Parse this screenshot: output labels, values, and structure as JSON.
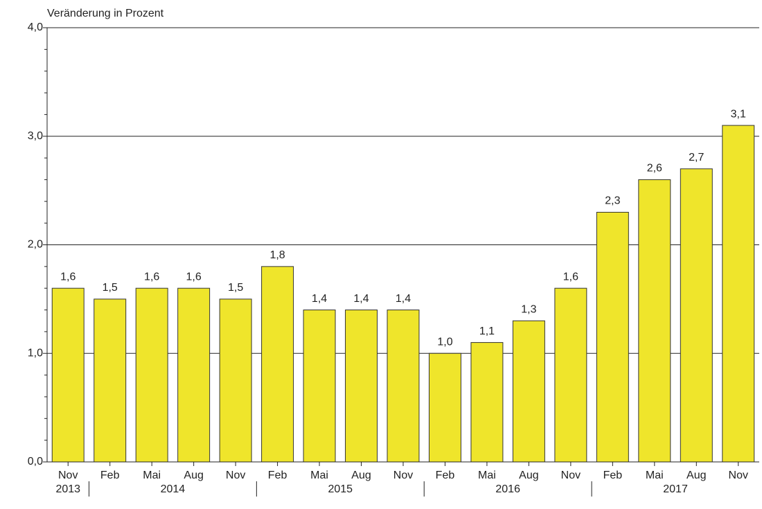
{
  "chart_data": {
    "type": "bar",
    "axis_label": "Veränderung in Prozent",
    "categories": [
      "Nov",
      "Feb",
      "Mai",
      "Aug",
      "Nov",
      "Feb",
      "Mai",
      "Aug",
      "Nov",
      "Feb",
      "Mai",
      "Aug",
      "Nov",
      "Feb",
      "Mai",
      "Aug",
      "Nov"
    ],
    "year_groups": [
      {
        "label": "2013",
        "count": 1
      },
      {
        "label": "2014",
        "count": 4
      },
      {
        "label": "2015",
        "count": 4
      },
      {
        "label": "2016",
        "count": 4
      },
      {
        "label": "2017",
        "count": 4
      }
    ],
    "values": [
      1.6,
      1.5,
      1.6,
      1.6,
      1.5,
      1.8,
      1.4,
      1.4,
      1.4,
      1.0,
      1.1,
      1.3,
      1.6,
      2.3,
      2.6,
      2.7,
      3.1
    ],
    "value_labels": [
      "1,6",
      "1,5",
      "1,6",
      "1,6",
      "1,5",
      "1,8",
      "1,4",
      "1,4",
      "1,4",
      "1,0",
      "1,1",
      "1,3",
      "1,6",
      "2,3",
      "2,6",
      "2,7",
      "3,1"
    ],
    "color": "#efe52b",
    "ylim": [
      0,
      4
    ],
    "yticks": [
      {
        "value": 0,
        "label": "0,0"
      },
      {
        "value": 1,
        "label": "1,0"
      },
      {
        "value": 2,
        "label": "2,0"
      },
      {
        "value": 3,
        "label": "3,0"
      },
      {
        "value": 4,
        "label": "4,0"
      }
    ],
    "minor_yticks": [
      0.2,
      0.4,
      0.6,
      0.8,
      1.2,
      1.4,
      1.6,
      1.8,
      2.2,
      2.4,
      2.6,
      2.8,
      3.2,
      3.4,
      3.6,
      3.8
    ],
    "grid": true
  }
}
